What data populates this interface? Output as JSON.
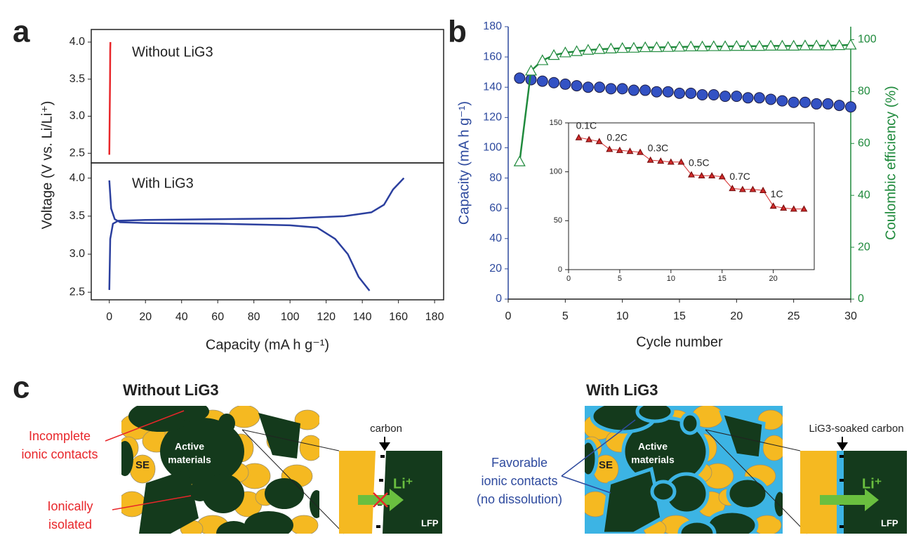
{
  "chart_data": [
    {
      "type": "line",
      "panel": "a",
      "ylabel": "Voltage (V vs. Li/Li⁺)",
      "annotation": "Without LiG3",
      "xlim": [
        -10,
        185
      ],
      "ylim": [
        2.37,
        4.17
      ],
      "yticks": [
        2.5,
        {
          "value": 3,
          "label": "3.0"
        },
        3.5,
        {
          "value": 4,
          "label": "4.0"
        }
      ],
      "series": [
        {
          "color": "#e8262a",
          "x": [
            0,
            0.2,
            0.4,
            0.5,
            0.6
          ],
          "values": [
            2.48,
            3.0,
            3.5,
            3.9,
            4.0
          ]
        }
      ]
    },
    {
      "type": "line",
      "annotation": "With LiG3",
      "xlabel": "Capacity (mA h g⁻¹)",
      "xlim": [
        -10,
        185
      ],
      "ylim": [
        2.4,
        4.2
      ],
      "xticks": [
        0,
        20,
        40,
        60,
        80,
        100,
        120,
        140,
        160,
        180
      ],
      "yticks": [
        2.5,
        {
          "value": 3,
          "label": "3.0"
        },
        3.5,
        {
          "value": 4,
          "label": "4.0"
        }
      ],
      "series": [
        {
          "color": "#2b3f9e",
          "x": [
            0,
            0.5,
            2,
            5,
            20,
            60,
            100,
            130,
            145,
            152,
            157,
            163
          ],
          "values": [
            2.53,
            3.2,
            3.4,
            3.44,
            3.45,
            3.46,
            3.47,
            3.5,
            3.55,
            3.65,
            3.85,
            4.0
          ]
        },
        {
          "color": "#2b3f9e",
          "x": [
            0,
            1,
            3,
            6,
            20,
            60,
            100,
            115,
            125,
            132,
            138,
            144
          ],
          "values": [
            3.97,
            3.6,
            3.46,
            3.42,
            3.41,
            3.4,
            3.38,
            3.35,
            3.2,
            3.0,
            2.7,
            2.52
          ]
        }
      ]
    },
    {
      "type": "line",
      "panel": "b",
      "xlabel": "Cycle number",
      "ylabel": "Capacity (mA h g⁻¹)",
      "y2label": "Coulombic efficiency (%)",
      "x": [
        1,
        2,
        3,
        4,
        5,
        6,
        7,
        8,
        9,
        10,
        11,
        12,
        13,
        14,
        15,
        16,
        17,
        18,
        19,
        20,
        21,
        22,
        23,
        24,
        25,
        26,
        27,
        28,
        29,
        30
      ],
      "xlim": [
        0,
        30
      ],
      "xticks": [
        0,
        5,
        10,
        15,
        20,
        25,
        30
      ],
      "ylim": [
        0,
        180
      ],
      "yticks": [
        0,
        20,
        40,
        60,
        80,
        100,
        120,
        140,
        160,
        180
      ],
      "y2lim": [
        0,
        105
      ],
      "y2ticks": [
        0,
        20,
        40,
        60,
        80,
        100
      ],
      "ycolor": "#2e4a9e",
      "y2color": "#1f8a3c",
      "series": [
        {
          "color": "#3352c4",
          "marker": "circle",
          "line": false,
          "values": [
            146,
            145,
            144,
            143,
            142,
            141,
            140,
            140,
            139,
            139,
            138,
            138,
            137,
            137,
            136,
            136,
            135,
            135,
            134,
            134,
            133,
            133,
            132,
            131,
            130,
            130,
            129,
            129,
            128,
            127
          ]
        },
        {
          "color": "#1f8a3c",
          "marker": "triangle",
          "marker_fill": "#ffffff",
          "line": true,
          "axis": "y2",
          "values": [
            53,
            88,
            92,
            94,
            95,
            95.5,
            96,
            96.3,
            96.5,
            96.7,
            96.8,
            97,
            97,
            97.1,
            97.2,
            97.3,
            97.3,
            97.4,
            97.4,
            97.5,
            97.5,
            97.5,
            97.6,
            97.6,
            97.6,
            97.7,
            97.7,
            97.7,
            97.8,
            98
          ]
        }
      ]
    },
    {
      "type": "line",
      "x": [
        1,
        2,
        3,
        4,
        5,
        6,
        7,
        8,
        9,
        10,
        11,
        12,
        13,
        14,
        15,
        16,
        17,
        18,
        19,
        20,
        21,
        22,
        23
      ],
      "xlim": [
        0,
        24
      ],
      "xticks": [
        0,
        5,
        10,
        15,
        20
      ],
      "ylim": [
        0,
        150
      ],
      "yticks": [
        0,
        50,
        100,
        150
      ],
      "annotations": [
        "0.1C",
        "0.2C",
        "0.3C",
        "0.5C",
        "0.7C",
        "1C"
      ],
      "series": [
        {
          "color": "#d42a2a",
          "marker": "triangle",
          "line": true,
          "values": [
            135,
            133,
            131,
            123,
            122,
            121,
            120,
            112,
            111,
            110,
            110,
            97,
            96,
            96,
            95,
            83,
            82,
            82,
            81,
            65,
            63,
            62,
            62
          ]
        }
      ]
    }
  ],
  "diagram": {
    "panel": "c",
    "left": {
      "title": "Without LiG3",
      "callouts": [
        [
          "Incomplete",
          "ionic contacts"
        ],
        [
          "Ionically",
          "isolated"
        ]
      ],
      "se_label": "SE",
      "active_label": [
        "Active",
        "materials"
      ],
      "interface_label": "carbon",
      "ion_label": "Li⁺",
      "electrode_label": "LFP"
    },
    "right": {
      "title": "With LiG3",
      "callouts": [
        [
          "Favorable",
          "ionic contacts",
          "(no dissolution)"
        ]
      ],
      "se_label": "SE",
      "active_label": [
        "Active",
        "materials"
      ],
      "interface_label": "LiG3-soaked carbon",
      "ion_label": "Li⁺",
      "electrode_label": "LFP"
    }
  }
}
